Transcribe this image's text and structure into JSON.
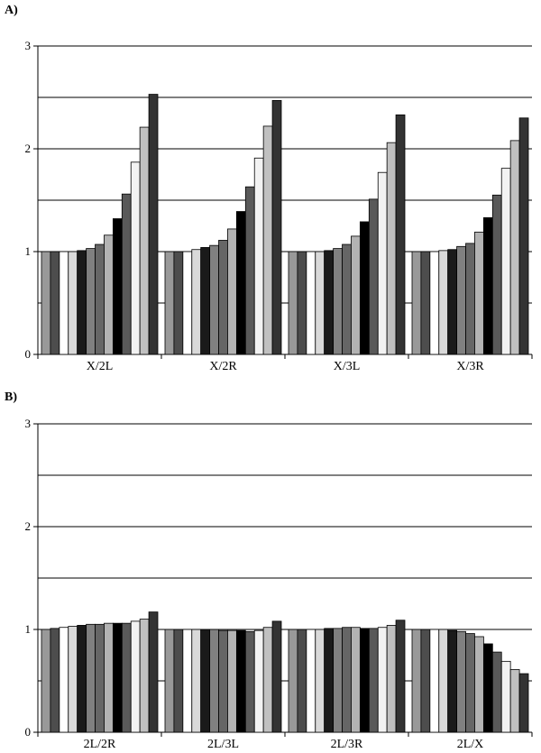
{
  "chart_data": [
    {
      "panel_label": "A)",
      "type": "bar",
      "ylim": [
        0,
        3
      ],
      "yticks": [
        "0",
        "1",
        "2",
        "3"
      ],
      "gridlines": [
        0.5,
        1,
        1.5,
        2,
        2.5,
        3
      ],
      "categories": [
        "X/2L",
        "X/2R",
        "X/3L",
        "X/3R"
      ],
      "bar_colors": [
        "#999999",
        "#4d4d4d",
        "#ffffff",
        "#d9d9d9",
        "#1a1a1a",
        "#808080",
        "#666666",
        "#b3b3b3",
        "#000000",
        "#595959",
        "#f2f2f2",
        "#c0c0c0",
        "#333333"
      ],
      "values": [
        [
          1.0,
          1.0,
          1.0,
          1.0,
          1.01,
          1.03,
          1.07,
          1.16,
          1.32,
          1.56,
          1.87,
          2.21,
          2.53
        ],
        [
          1.0,
          1.0,
          1.0,
          1.02,
          1.04,
          1.06,
          1.11,
          1.22,
          1.39,
          1.63,
          1.91,
          2.22,
          2.47
        ],
        [
          1.0,
          1.0,
          1.0,
          1.0,
          1.01,
          1.03,
          1.07,
          1.15,
          1.29,
          1.51,
          1.77,
          2.06,
          2.33
        ],
        [
          1.0,
          1.0,
          1.0,
          1.01,
          1.02,
          1.05,
          1.08,
          1.19,
          1.33,
          1.55,
          1.81,
          2.08,
          2.3
        ]
      ]
    },
    {
      "panel_label": "B)",
      "type": "bar",
      "ylim": [
        0,
        3
      ],
      "yticks": [
        "0",
        "1",
        "2",
        "3"
      ],
      "gridlines": [
        0.5,
        1,
        1.5,
        2,
        2.5,
        3
      ],
      "categories": [
        "2L/2R",
        "2L/3L",
        "2L/3R",
        "2L/X"
      ],
      "bar_colors": [
        "#999999",
        "#4d4d4d",
        "#ffffff",
        "#d9d9d9",
        "#1a1a1a",
        "#808080",
        "#666666",
        "#b3b3b3",
        "#000000",
        "#595959",
        "#f2f2f2",
        "#c0c0c0",
        "#333333"
      ],
      "values": [
        [
          1.0,
          1.01,
          1.02,
          1.03,
          1.04,
          1.05,
          1.05,
          1.06,
          1.06,
          1.06,
          1.08,
          1.1,
          1.17
        ],
        [
          1.0,
          1.0,
          1.0,
          1.0,
          1.0,
          1.0,
          0.99,
          0.99,
          0.99,
          0.98,
          0.99,
          1.02,
          1.08
        ],
        [
          1.0,
          1.0,
          1.0,
          1.0,
          1.01,
          1.01,
          1.02,
          1.02,
          1.01,
          1.01,
          1.02,
          1.04,
          1.09
        ],
        [
          1.0,
          1.0,
          1.0,
          1.0,
          0.99,
          0.98,
          0.96,
          0.93,
          0.86,
          0.78,
          0.69,
          0.61,
          0.57
        ]
      ]
    }
  ]
}
